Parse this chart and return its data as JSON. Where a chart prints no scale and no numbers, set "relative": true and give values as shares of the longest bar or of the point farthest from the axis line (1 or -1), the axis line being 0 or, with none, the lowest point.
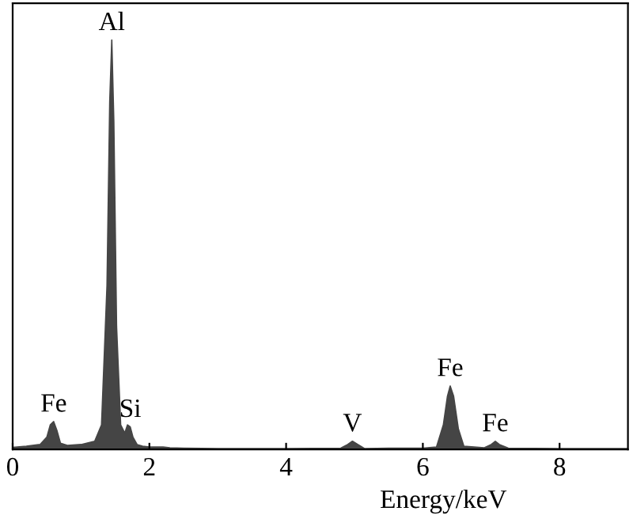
{
  "chart_data": {
    "type": "area",
    "xlabel": "Energy/keV",
    "relative": true,
    "color": "#454545",
    "x": [
      0,
      0.2,
      0.4,
      0.5,
      0.55,
      0.6,
      0.65,
      0.7,
      0.8,
      1.0,
      1.2,
      1.3,
      1.38,
      1.42,
      1.45,
      1.48,
      1.52,
      1.58,
      1.64,
      1.68,
      1.72,
      1.76,
      1.82,
      1.9,
      2.0,
      2.2,
      2.3,
      2.5,
      3.0,
      4.0,
      4.8,
      4.9,
      4.97,
      5.05,
      5.15,
      5.5,
      6.0,
      6.2,
      6.3,
      6.36,
      6.4,
      6.45,
      6.52,
      6.6,
      6.9,
      7.0,
      7.06,
      7.12,
      7.25,
      8.0,
      9.0
    ],
    "values": [
      0.005,
      0.008,
      0.012,
      0.03,
      0.06,
      0.068,
      0.045,
      0.015,
      0.01,
      0.012,
      0.02,
      0.06,
      0.4,
      0.85,
      1.0,
      0.8,
      0.3,
      0.06,
      0.04,
      0.06,
      0.055,
      0.03,
      0.012,
      0.008,
      0.006,
      0.006,
      0.004,
      0.003,
      0.002,
      0.002,
      0.003,
      0.012,
      0.02,
      0.012,
      0.002,
      0.003,
      0.003,
      0.006,
      0.06,
      0.13,
      0.155,
      0.13,
      0.05,
      0.008,
      0.004,
      0.012,
      0.02,
      0.012,
      0.003,
      0.002,
      0.002
    ],
    "xlim": [
      0,
      9.0
    ],
    "xticks": [
      0,
      2,
      4,
      6,
      8
    ],
    "tick_labels": "x",
    "annotations": [
      {
        "text": "Al",
        "x": 1.45,
        "y": 1.0
      },
      {
        "text": "Fe",
        "x": 0.6,
        "y": 0.068
      },
      {
        "text": "Si",
        "x": 1.72,
        "y": 0.055
      },
      {
        "text": "V",
        "x": 4.97,
        "y": 0.02
      },
      {
        "text": "Fe",
        "x": 6.4,
        "y": 0.155
      },
      {
        "text": "Fe",
        "x": 7.06,
        "y": 0.02
      }
    ]
  }
}
